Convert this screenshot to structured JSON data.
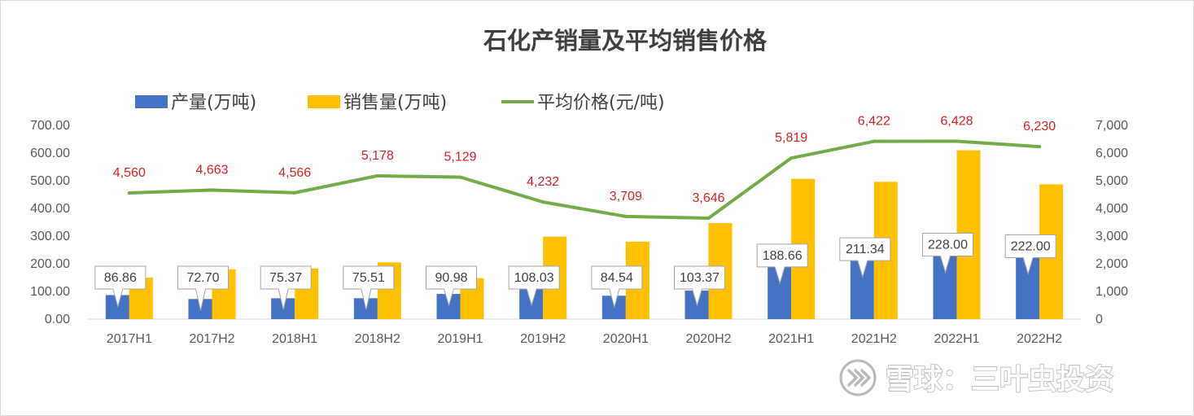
{
  "chart_data": {
    "type": "bar",
    "title": "石化产销量及平均销售价格",
    "categories": [
      "2017H1",
      "2017H2",
      "2018H1",
      "2018H2",
      "2019H1",
      "2019H2",
      "2020H1",
      "2020H2",
      "2021H1",
      "2021H2",
      "2022H1",
      "2022H2"
    ],
    "series": [
      {
        "name": "产量(万吨)",
        "type": "bar",
        "axis": "left",
        "color": "#4472c4",
        "values": [
          86.86,
          72.7,
          75.37,
          75.51,
          90.98,
          108.03,
          84.54,
          103.37,
          188.66,
          211.34,
          228.0,
          222.0
        ],
        "labels": [
          "86.86",
          "72.70",
          "75.37",
          "75.51",
          "90.98",
          "108.03",
          "84.54",
          "103.37",
          "188.66",
          "211.34",
          "228.00",
          "222.00"
        ]
      },
      {
        "name": "销售量(万吨)",
        "type": "bar",
        "axis": "left",
        "color": "#ffc000",
        "values": [
          150,
          180,
          183,
          205,
          148,
          298,
          280,
          347,
          507,
          496,
          610,
          487
        ]
      },
      {
        "name": "平均价格(元/吨)",
        "type": "line",
        "axis": "right",
        "color": "#70ad47",
        "values": [
          4560,
          4663,
          4566,
          5178,
          5129,
          4232,
          3709,
          3646,
          5819,
          6422,
          6428,
          6230
        ],
        "labels": [
          "4,560",
          "4,663",
          "4,566",
          "5,178",
          "5,129",
          "4,232",
          "3,709",
          "3,646",
          "5,819",
          "6,422",
          "6,428",
          "6,230"
        ],
        "label_color": "#d62222"
      }
    ],
    "y_left": {
      "min": 0,
      "max": 700,
      "ticks": [
        "0.00",
        "100.00",
        "200.00",
        "300.00",
        "400.00",
        "500.00",
        "600.00",
        "700.00"
      ]
    },
    "y_right": {
      "min": 0,
      "max": 7000,
      "ticks": [
        "0",
        "1,000",
        "2,000",
        "3,000",
        "4,000",
        "5,000",
        "6,000",
        "7,000"
      ]
    },
    "legend": "top",
    "grid": false
  },
  "watermark": {
    "text": "雪球：三叶虫投资",
    "icon": "snowball-logo-icon"
  }
}
